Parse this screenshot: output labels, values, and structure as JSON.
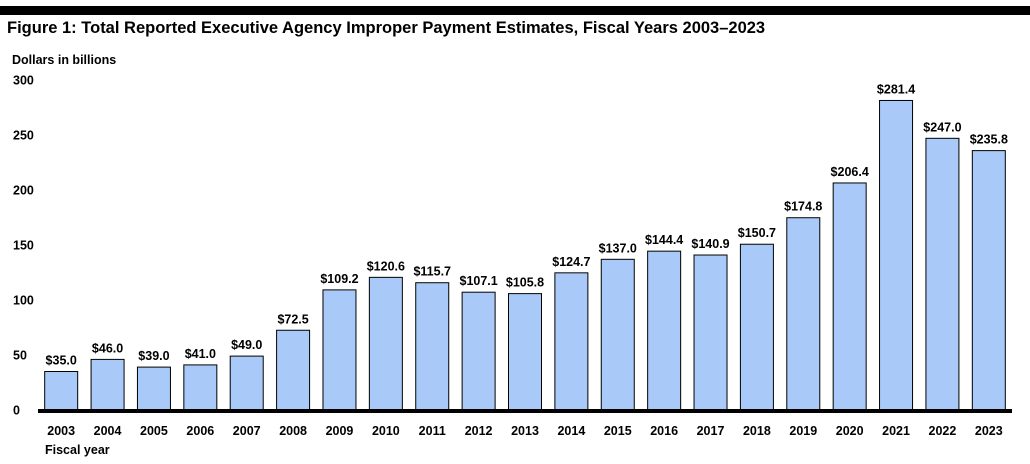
{
  "figure": {
    "title": "Figure 1: Total Reported Executive Agency Improper Payment Estimates, Fiscal Years 2003–2023"
  },
  "chart_data": {
    "type": "bar",
    "title": "Figure 1: Total Reported Executive Agency Improper Payment Estimates, Fiscal Years 2003–2023",
    "ylabel": "Dollars in billions",
    "xlabel": "Fiscal year",
    "ylim": [
      0,
      300
    ],
    "yticks": [
      0,
      50,
      100,
      150,
      200,
      250,
      300
    ],
    "grid": false,
    "categories": [
      "2003",
      "2004",
      "2005",
      "2006",
      "2007",
      "2008",
      "2009",
      "2010",
      "2011",
      "2012",
      "2013",
      "2014",
      "2015",
      "2016",
      "2017",
      "2018",
      "2019",
      "2020",
      "2021",
      "2022",
      "2023"
    ],
    "values": [
      35.0,
      46.0,
      39.0,
      41.0,
      49.0,
      72.5,
      109.2,
      120.6,
      115.7,
      107.1,
      105.8,
      124.7,
      137.0,
      144.4,
      140.9,
      150.7,
      174.8,
      206.4,
      281.4,
      247.0,
      235.8
    ],
    "data_labels": [
      "$35.0",
      "$46.0",
      "$39.0",
      "$41.0",
      "$49.0",
      "$72.5",
      "$109.2",
      "$120.6",
      "$115.7",
      "$107.1",
      "$105.8",
      "$124.7",
      "$137.0",
      "$144.4",
      "$140.9",
      "$150.7",
      "$174.8",
      "$206.4",
      "$281.4",
      "$247.0",
      "$235.8"
    ],
    "bar_color": "#a9caf8",
    "bar_edge_color": "#000000"
  }
}
